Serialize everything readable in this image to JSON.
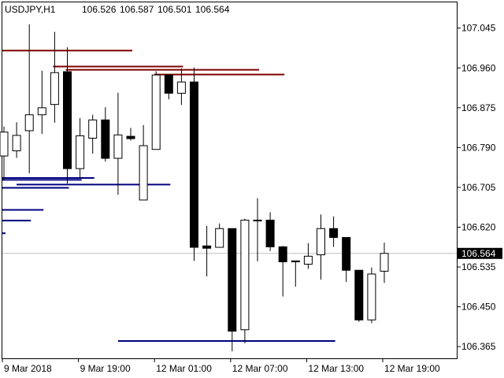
{
  "symbol": "USDJPY,H1",
  "ohlc": {
    "open": "106.526",
    "high": "106.587",
    "low": "106.501",
    "close": "106.564"
  },
  "current_price": "106.564",
  "colors": {
    "background": "#ffffff",
    "candle_stroke": "#000000",
    "bull_fill": "#ffffff",
    "bear_fill": "#000000",
    "resistance": "#800000",
    "support": "#000080",
    "price_line": "#c0c0c0",
    "badge_fill": "#000000"
  },
  "chart_data": {
    "type": "candlestick",
    "ylim": [
      106.34,
      107.1
    ],
    "y_ticks": [
      "107.045",
      "106.960",
      "106.875",
      "106.790",
      "106.705",
      "106.620",
      "106.535",
      "106.450",
      "106.365"
    ],
    "x_ticks": [
      "9 Mar 2018",
      "9 Mar 19:00",
      "12 Mar 01:00",
      "12 Mar 07:00",
      "12 Mar 13:00",
      "12 Mar 19:00"
    ],
    "candles": [
      {
        "o": 106.772,
        "h": 106.835,
        "l": 106.72,
        "c": 106.823
      },
      {
        "o": 106.783,
        "h": 106.844,
        "l": 106.768,
        "c": 106.816
      },
      {
        "o": 106.826,
        "h": 107.053,
        "l": 106.735,
        "c": 106.86
      },
      {
        "o": 106.86,
        "h": 106.954,
        "l": 106.819,
        "c": 106.875
      },
      {
        "o": 106.882,
        "h": 107.037,
        "l": 106.843,
        "c": 106.95
      },
      {
        "o": 106.952,
        "h": 107.004,
        "l": 106.713,
        "c": 106.745
      },
      {
        "o": 106.745,
        "h": 106.853,
        "l": 106.724,
        "c": 106.815
      },
      {
        "o": 106.81,
        "h": 106.86,
        "l": 106.777,
        "c": 106.849
      },
      {
        "o": 106.849,
        "h": 106.876,
        "l": 106.76,
        "c": 106.767
      },
      {
        "o": 106.767,
        "h": 106.907,
        "l": 106.689,
        "c": 106.817
      },
      {
        "o": 106.814,
        "h": 106.832,
        "l": 106.805,
        "c": 106.809
      },
      {
        "o": 106.678,
        "h": 106.838,
        "l": 106.678,
        "c": 106.794
      },
      {
        "o": 106.786,
        "h": 106.953,
        "l": 106.786,
        "c": 106.945
      },
      {
        "o": 106.945,
        "h": 106.945,
        "l": 106.893,
        "c": 106.906
      },
      {
        "o": 106.906,
        "h": 106.959,
        "l": 106.881,
        "c": 106.93
      },
      {
        "o": 106.93,
        "h": 106.961,
        "l": 106.548,
        "c": 106.577
      },
      {
        "o": 106.58,
        "h": 106.623,
        "l": 106.515,
        "c": 106.575
      },
      {
        "o": 106.577,
        "h": 106.628,
        "l": 106.577,
        "c": 106.617
      },
      {
        "o": 106.617,
        "h": 106.617,
        "l": 106.355,
        "c": 106.398
      },
      {
        "o": 106.401,
        "h": 106.638,
        "l": 106.372,
        "c": 106.635
      },
      {
        "o": 106.635,
        "h": 106.682,
        "l": 106.547,
        "c": 106.635
      },
      {
        "o": 106.635,
        "h": 106.652,
        "l": 106.569,
        "c": 106.578
      },
      {
        "o": 106.578,
        "h": 106.58,
        "l": 106.472,
        "c": 106.546
      },
      {
        "o": 106.548,
        "h": 106.548,
        "l": 106.493,
        "c": 106.546
      },
      {
        "o": 106.541,
        "h": 106.586,
        "l": 106.531,
        "c": 106.558
      },
      {
        "o": 106.561,
        "h": 106.647,
        "l": 106.508,
        "c": 106.617
      },
      {
        "o": 106.617,
        "h": 106.643,
        "l": 106.578,
        "c": 106.598
      },
      {
        "o": 106.598,
        "h": 106.598,
        "l": 106.503,
        "c": 106.528
      },
      {
        "o": 106.528,
        "h": 106.528,
        "l": 106.418,
        "c": 106.422
      },
      {
        "o": 106.422,
        "h": 106.534,
        "l": 106.415,
        "c": 106.52
      },
      {
        "o": 106.526,
        "h": 106.587,
        "l": 106.501,
        "c": 106.564
      }
    ],
    "resistance_lines": [
      {
        "price": 106.997,
        "from_candle": 0,
        "to_candle": 10
      },
      {
        "price": 106.963,
        "from_candle": 4,
        "to_candle": 14
      },
      {
        "price": 106.956,
        "from_candle": 5,
        "to_candle": 20
      },
      {
        "price": 106.946,
        "from_candle": 12,
        "to_candle": 22
      }
    ],
    "support_lines": [
      {
        "price": 106.725,
        "from_candle": 0,
        "to_candle": 7
      },
      {
        "price": 106.721,
        "from_candle": 0,
        "to_candle": 6
      },
      {
        "price": 106.711,
        "from_candle": 1,
        "to_candle": 13
      },
      {
        "price": 106.704,
        "from_candle": 0,
        "to_candle": 5
      },
      {
        "price": 106.657,
        "from_candle": 0,
        "to_candle": 3
      },
      {
        "price": 106.634,
        "from_candle": 0,
        "to_candle": 2
      },
      {
        "price": 106.607,
        "from_candle": 0,
        "to_candle": 0
      },
      {
        "price": 106.377,
        "from_candle": 9,
        "to_candle": 26
      }
    ]
  }
}
